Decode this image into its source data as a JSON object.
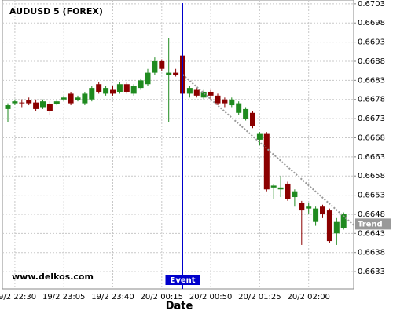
{
  "chart_data": {
    "type": "candlestick",
    "title": "AUDUSD 5 (FOREX)",
    "x_label": "Date",
    "watermark": "www.delkos.com",
    "categories": [
      null,
      "19/2 22:30",
      null,
      null,
      null,
      null,
      null,
      null,
      "19/2 23:05",
      null,
      null,
      null,
      null,
      null,
      null,
      "19/2 23:40",
      null,
      null,
      null,
      null,
      null,
      null,
      "20/2 00:15",
      null,
      null,
      null,
      null,
      null,
      null,
      "20/2 00:50",
      null,
      null,
      null,
      null,
      null,
      null,
      "20/2 01:25",
      null,
      null,
      null,
      null,
      null,
      null,
      "20/2 02:00",
      null,
      null,
      null,
      null,
      null
    ],
    "open": [
      0.66755,
      0.6677,
      0.66772,
      0.66778,
      0.66772,
      0.6676,
      0.66768,
      0.66768,
      0.6678,
      0.66795,
      0.66778,
      0.6677,
      0.6678,
      0.6682,
      0.66795,
      0.66805,
      0.668,
      0.6682,
      0.66795,
      0.6681,
      0.6682,
      0.6685,
      0.6688,
      0.66845,
      0.6685,
      0.66895,
      0.66795,
      0.66805,
      0.66785,
      0.668,
      0.6679,
      0.6678,
      0.66765,
      0.66745,
      0.6673,
      0.66745,
      0.66675,
      0.6669,
      0.6655,
      0.66545,
      0.6656,
      0.66525,
      0.6651,
      0.66495,
      0.6646,
      0.665,
      0.6649,
      0.6643,
      0.66445
    ],
    "high": [
      0.6677,
      0.6678,
      0.6678,
      0.66785,
      0.6678,
      0.6678,
      0.66775,
      0.6678,
      0.6679,
      0.668,
      0.6679,
      0.668,
      0.66815,
      0.66825,
      0.66815,
      0.66815,
      0.66825,
      0.66825,
      0.6682,
      0.66835,
      0.6686,
      0.6689,
      0.66885,
      0.6694,
      0.6686,
      0.669,
      0.66815,
      0.6681,
      0.66805,
      0.66805,
      0.66795,
      0.66785,
      0.66785,
      0.66775,
      0.6676,
      0.6675,
      0.66695,
      0.66695,
      0.6656,
      0.6658,
      0.66565,
      0.66545,
      0.66515,
      0.6651,
      0.665,
      0.66505,
      0.66495,
      0.6647,
      0.66485
    ],
    "low": [
      0.6672,
      0.66765,
      0.6676,
      0.66765,
      0.6675,
      0.66755,
      0.6674,
      0.66765,
      0.66775,
      0.66765,
      0.66775,
      0.66765,
      0.66775,
      0.66795,
      0.6679,
      0.6679,
      0.66795,
      0.66795,
      0.6679,
      0.66805,
      0.66815,
      0.66845,
      0.66855,
      0.6672,
      0.6684,
      0.6679,
      0.66785,
      0.66785,
      0.6678,
      0.6678,
      0.66765,
      0.6676,
      0.6676,
      0.6674,
      0.66725,
      0.66705,
      0.6666,
      0.6654,
      0.6652,
      0.66525,
      0.66515,
      0.665,
      0.664,
      0.6648,
      0.6645,
      0.6647,
      0.66405,
      0.664,
      0.6644
    ],
    "close": [
      0.66765,
      0.66775,
      0.6677,
      0.6677,
      0.66755,
      0.66775,
      0.6675,
      0.66775,
      0.66785,
      0.6677,
      0.66785,
      0.66795,
      0.6681,
      0.668,
      0.6681,
      0.66795,
      0.6682,
      0.668,
      0.66815,
      0.6683,
      0.6685,
      0.6688,
      0.6686,
      0.6685,
      0.66845,
      0.66795,
      0.6681,
      0.6679,
      0.668,
      0.6679,
      0.6677,
      0.6677,
      0.6678,
      0.6677,
      0.66755,
      0.6671,
      0.6669,
      0.66545,
      0.66555,
      0.6655,
      0.6652,
      0.6654,
      0.6649,
      0.665,
      0.66495,
      0.6648,
      0.6641,
      0.6646,
      0.6648
    ],
    "up_color": "#1f8a1f",
    "down_color": "#8b0000",
    "ylim": [
      0.66285,
      0.6704
    ],
    "yticks": [
      0.6633,
      0.6638,
      0.6643,
      0.6648,
      0.6653,
      0.6658,
      0.6663,
      0.6668,
      0.6673,
      0.6678,
      0.6683,
      0.6688,
      0.6693,
      0.6698,
      0.6703
    ],
    "grid": true,
    "event": {
      "label": "Event",
      "index": 25,
      "color": "#0000cc"
    },
    "trendline": {
      "name": "Trend",
      "index": [
        25,
        48
      ],
      "values": [
        0.66845,
        0.66475
      ],
      "color": "#999999"
    }
  }
}
